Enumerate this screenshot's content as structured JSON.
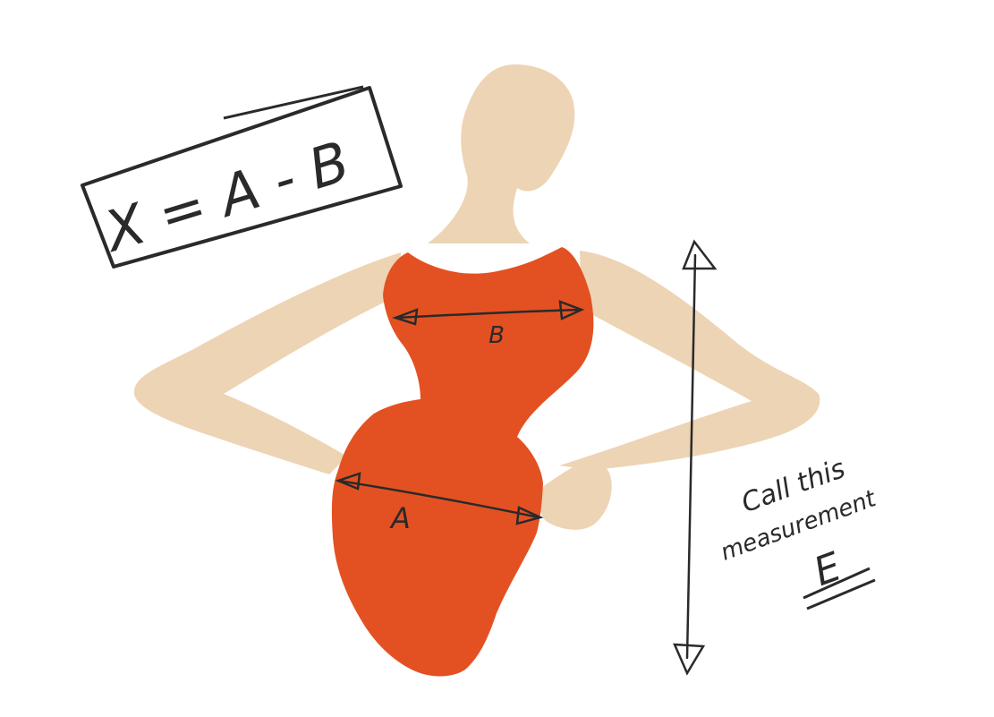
{
  "formula": {
    "text": "X = A - B"
  },
  "labels": {
    "b": "B",
    "a": "A",
    "note_line1": "Call this",
    "note_line2": "measurement",
    "note_letter": "E"
  },
  "colors": {
    "skin": "#edd4b4",
    "dress": "#e35122",
    "ink": "#2a2a2a",
    "background": "#ffffff"
  }
}
